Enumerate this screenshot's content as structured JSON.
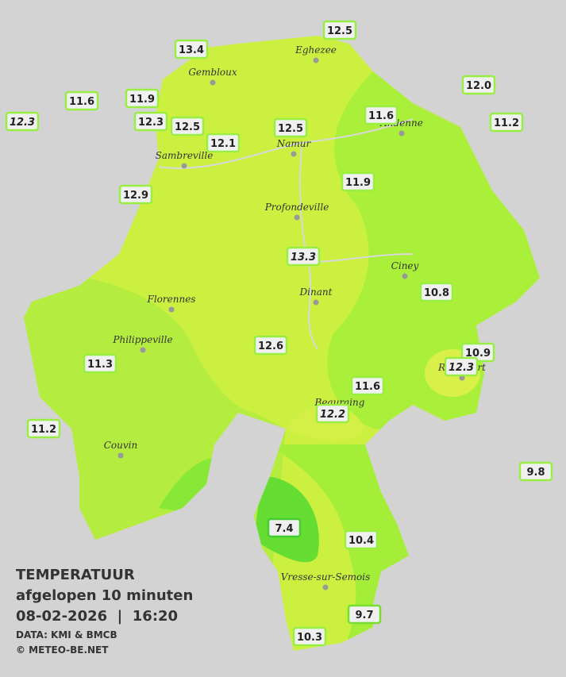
{
  "legend": {
    "title": "TEMPERATUUR",
    "subtitle": "afgelopen 10 minuten",
    "datetime": "08-02-2026  |  16:20",
    "source": "DATA: KMI & BMCB",
    "copyright": "© METEO-BE.NET"
  },
  "cities": [
    "Eghezee",
    "Gembloux",
    "Andenne",
    "Namur",
    "Sambreville",
    "Profondeville",
    "Ciney",
    "Dinant",
    "Florennes",
    "Philippeville",
    "Rochefort",
    "Beauraing",
    "Couvin",
    "Vresse-sur-Semois"
  ],
  "readings": [
    {
      "text": "12.5",
      "italic": false,
      "color": "#99ee44"
    },
    {
      "text": "13.4",
      "italic": false,
      "color": "#99ee44"
    },
    {
      "text": "12.0",
      "italic": false,
      "color": "#99ee44"
    },
    {
      "text": "11.6",
      "italic": false,
      "color": "#99ee44"
    },
    {
      "text": "11.9",
      "italic": false,
      "color": "#99ee44"
    },
    {
      "text": "12.3",
      "italic": true,
      "color": "#99ee44"
    },
    {
      "text": "12.3",
      "italic": false,
      "color": "#99ee44"
    },
    {
      "text": "12.5",
      "italic": false,
      "color": "#99ee44"
    },
    {
      "text": "11.6",
      "italic": false,
      "color": "#99ee44"
    },
    {
      "text": "11.2",
      "italic": false,
      "color": "#99ee44"
    },
    {
      "text": "12.5",
      "italic": false,
      "color": "#99ee44"
    },
    {
      "text": "12.1",
      "italic": false,
      "color": "#99ee44"
    },
    {
      "text": "11.9",
      "italic": false,
      "color": "#99ee44"
    },
    {
      "text": "12.9",
      "italic": false,
      "color": "#99ee44"
    },
    {
      "text": "13.3",
      "italic": true,
      "color": "#99ee44"
    },
    {
      "text": "10.8",
      "italic": false,
      "color": "#99ee44"
    },
    {
      "text": "12.6",
      "italic": false,
      "color": "#99ee44"
    },
    {
      "text": "10.9",
      "italic": false,
      "color": "#99ee44"
    },
    {
      "text": "12.3",
      "italic": true,
      "color": "#99ee44"
    },
    {
      "text": "11.3",
      "italic": false,
      "color": "#99ee44"
    },
    {
      "text": "11.6",
      "italic": false,
      "color": "#99ee44"
    },
    {
      "text": "12.2",
      "italic": true,
      "color": "#99ee44"
    },
    {
      "text": "11.2",
      "italic": false,
      "color": "#99ee44"
    },
    {
      "text": "9.8",
      "italic": false,
      "color": "#99ee44"
    },
    {
      "text": "7.4",
      "italic": false,
      "color": "#44cc33"
    },
    {
      "text": "10.4",
      "italic": false,
      "color": "#99ee44"
    },
    {
      "text": "9.7",
      "italic": false,
      "color": "#77dd33"
    },
    {
      "text": "10.3",
      "italic": false,
      "color": "#99ee44"
    }
  ]
}
